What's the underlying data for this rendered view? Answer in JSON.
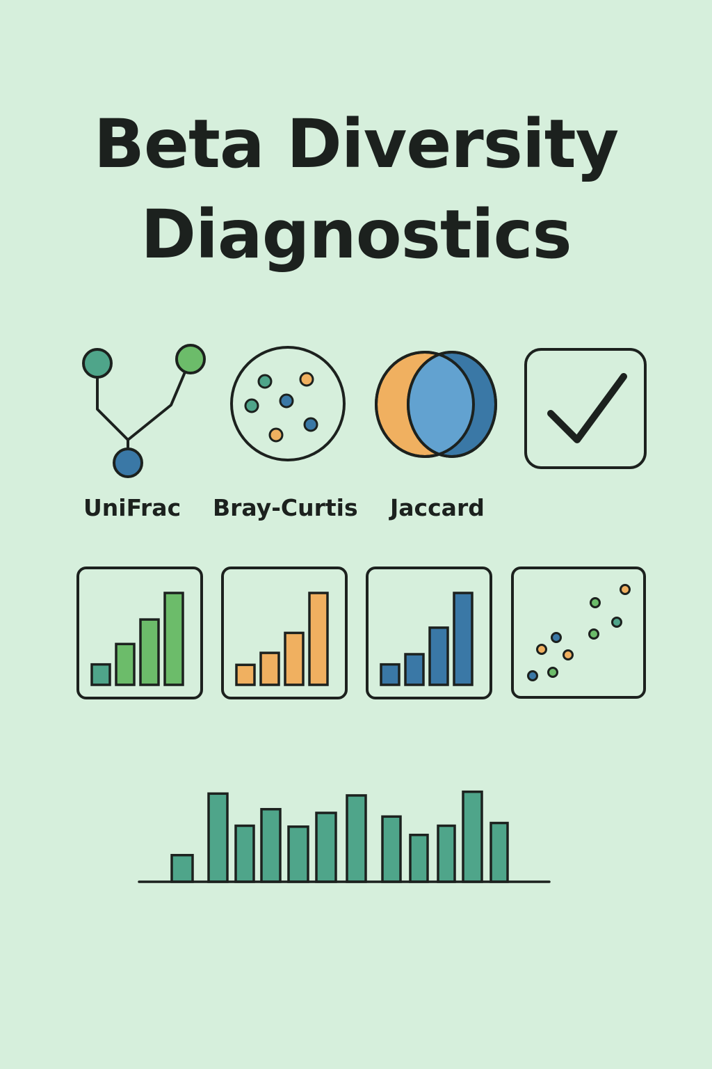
{
  "title": {
    "line1": "Beta Diversity",
    "line2": "Diagnostics"
  },
  "metrics": [
    {
      "label": "UniFrac",
      "icon": "phylogenetic-tree-icon"
    },
    {
      "label": "Bray-Curtis",
      "icon": "sample-dots-circle-icon"
    },
    {
      "label": "Jaccard",
      "icon": "venn-overlap-icon"
    },
    {
      "label": "",
      "icon": "checkmark-box-icon"
    }
  ],
  "colors": {
    "background": "#d6efdc",
    "ink": "#1c211e",
    "teal": "#4fa58a",
    "green": "#6cbc6a",
    "orange": "#f0b060",
    "light_blue": "#62a2d0",
    "blue": "#3a78a6"
  },
  "panels": [
    {
      "icon": "green-bar-chart-icon",
      "type": "bar",
      "values": [
        1,
        2,
        3.2,
        4.5
      ],
      "colors": [
        "#4fa58a",
        "#6cbc6a",
        "#6cbc6a",
        "#6cbc6a"
      ]
    },
    {
      "icon": "orange-bar-chart-icon",
      "type": "bar",
      "values": [
        1,
        1.6,
        2.6,
        4.6
      ],
      "colors": [
        "#f0b060",
        "#f0b060",
        "#f0b060",
        "#f0b060"
      ]
    },
    {
      "icon": "blue-bar-chart-icon",
      "type": "bar",
      "values": [
        1,
        1.5,
        2.8,
        4.5
      ],
      "colors": [
        "#3a78a6",
        "#3a78a6",
        "#3a78a6",
        "#3a78a6"
      ]
    },
    {
      "icon": "scatter-plot-icon",
      "type": "scatter"
    }
  ],
  "chart_data": {
    "type": "bar",
    "categories": [
      "",
      "",
      "",
      "",
      "",
      "",
      "",
      "",
      "",
      "",
      "",
      ""
    ],
    "values": [
      2.9,
      9.6,
      6.1,
      7.9,
      6.0,
      7.5,
      9.4,
      7.1,
      5.1,
      6.1,
      9.8,
      6.4
    ],
    "title": "",
    "xlabel": "",
    "ylabel": "",
    "ylim": [
      0,
      10
    ],
    "grid": false,
    "bar_color": "#4fa58a"
  }
}
